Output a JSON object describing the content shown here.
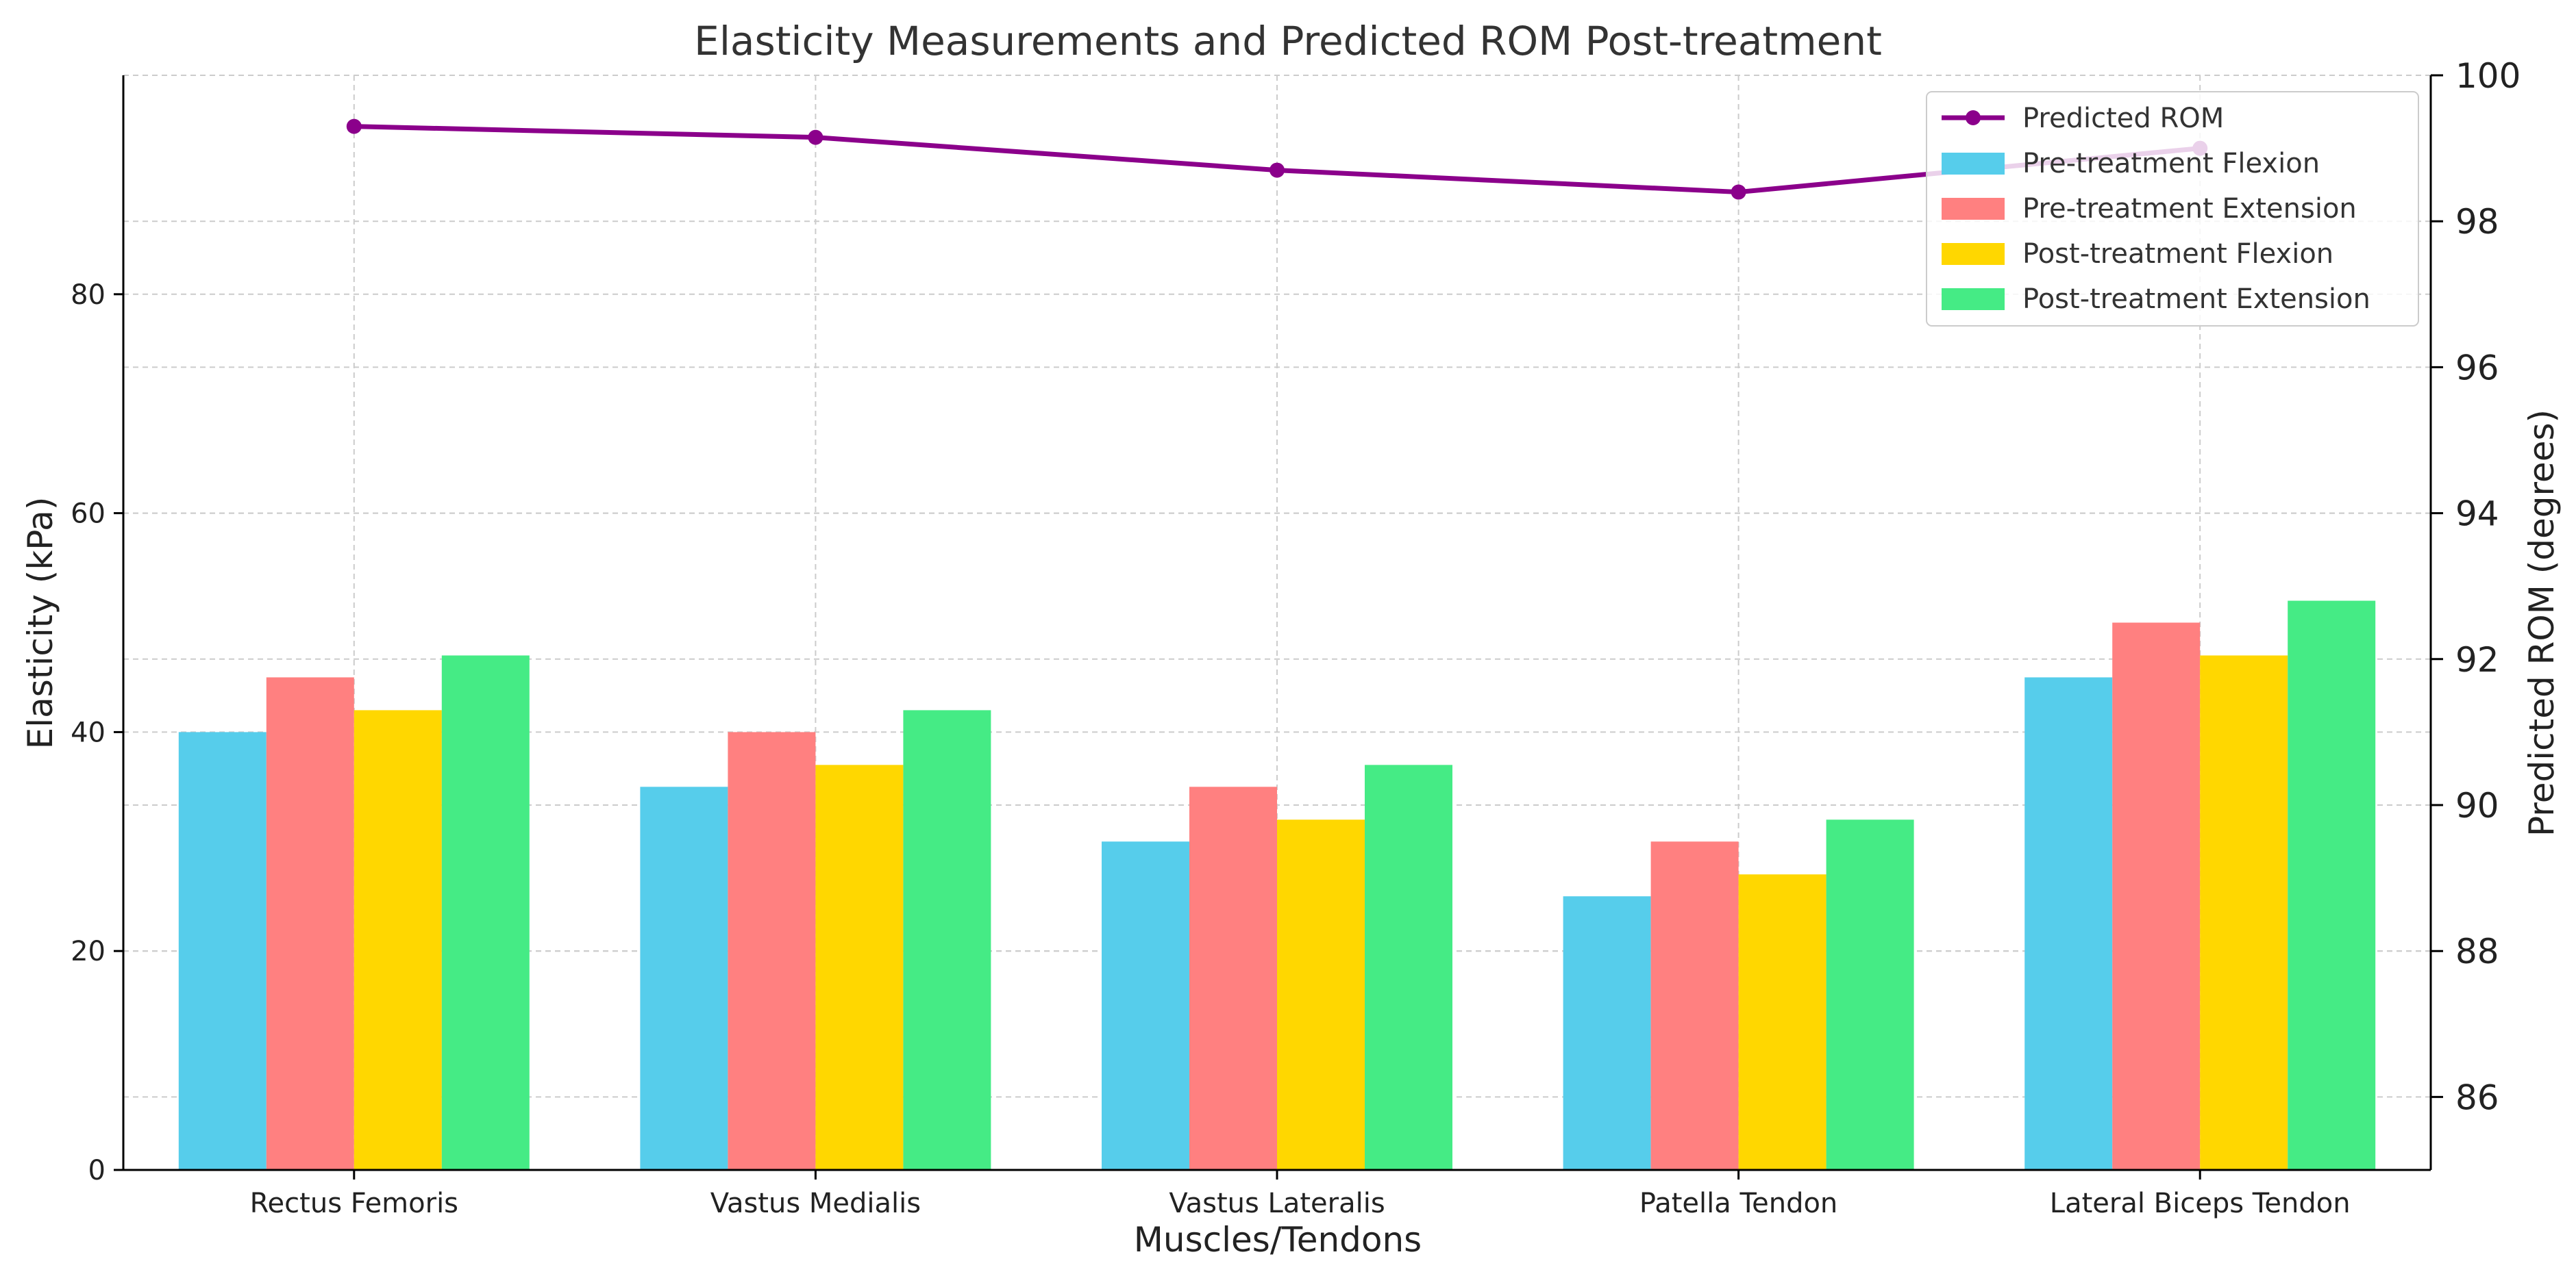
{
  "chart_data": {
    "type": "bar",
    "title": "Elasticity Measurements and Predicted ROM Post-treatment",
    "xlabel": "Muscles/Tendons",
    "ylabel": "Elasticity (kPa)",
    "y2label": "Predicted ROM (degrees)",
    "ylim": [
      0,
      100
    ],
    "y2lim": [
      85,
      100
    ],
    "yticks": [
      0,
      20,
      40,
      60,
      80
    ],
    "y2ticks": [
      86,
      88,
      90,
      92,
      94,
      96,
      98,
      100
    ],
    "grid": true,
    "legend_position": "top-right",
    "categories": [
      "Rectus Femoris",
      "Vastus Medialis",
      "Vastus Lateralis",
      "Patella Tendon",
      "Lateral Biceps Tendon"
    ],
    "series": [
      {
        "name": "Pre-treatment Flexion",
        "type": "bar",
        "axis": "left",
        "color": "#56cdeb",
        "values": [
          40,
          35,
          30,
          25,
          45
        ]
      },
      {
        "name": "Pre-treatment Extension",
        "type": "bar",
        "axis": "left",
        "color": "#ff8080",
        "values": [
          45,
          40,
          35,
          30,
          50
        ]
      },
      {
        "name": "Post-treatment Flexion",
        "type": "bar",
        "axis": "left",
        "color": "#ffd700",
        "values": [
          42,
          37,
          32,
          27,
          47
        ]
      },
      {
        "name": "Post-treatment Extension",
        "type": "bar",
        "axis": "left",
        "color": "#45eb85",
        "values": [
          47,
          42,
          37,
          32,
          52
        ]
      },
      {
        "name": "Predicted ROM",
        "type": "line",
        "axis": "right",
        "color": "#8b008b",
        "values": [
          99.3,
          99.15,
          98.7,
          98.4,
          99.0
        ]
      }
    ],
    "legend_order": [
      "Predicted ROM",
      "Pre-treatment Flexion",
      "Pre-treatment Extension",
      "Post-treatment Flexion",
      "Post-treatment Extension"
    ]
  }
}
